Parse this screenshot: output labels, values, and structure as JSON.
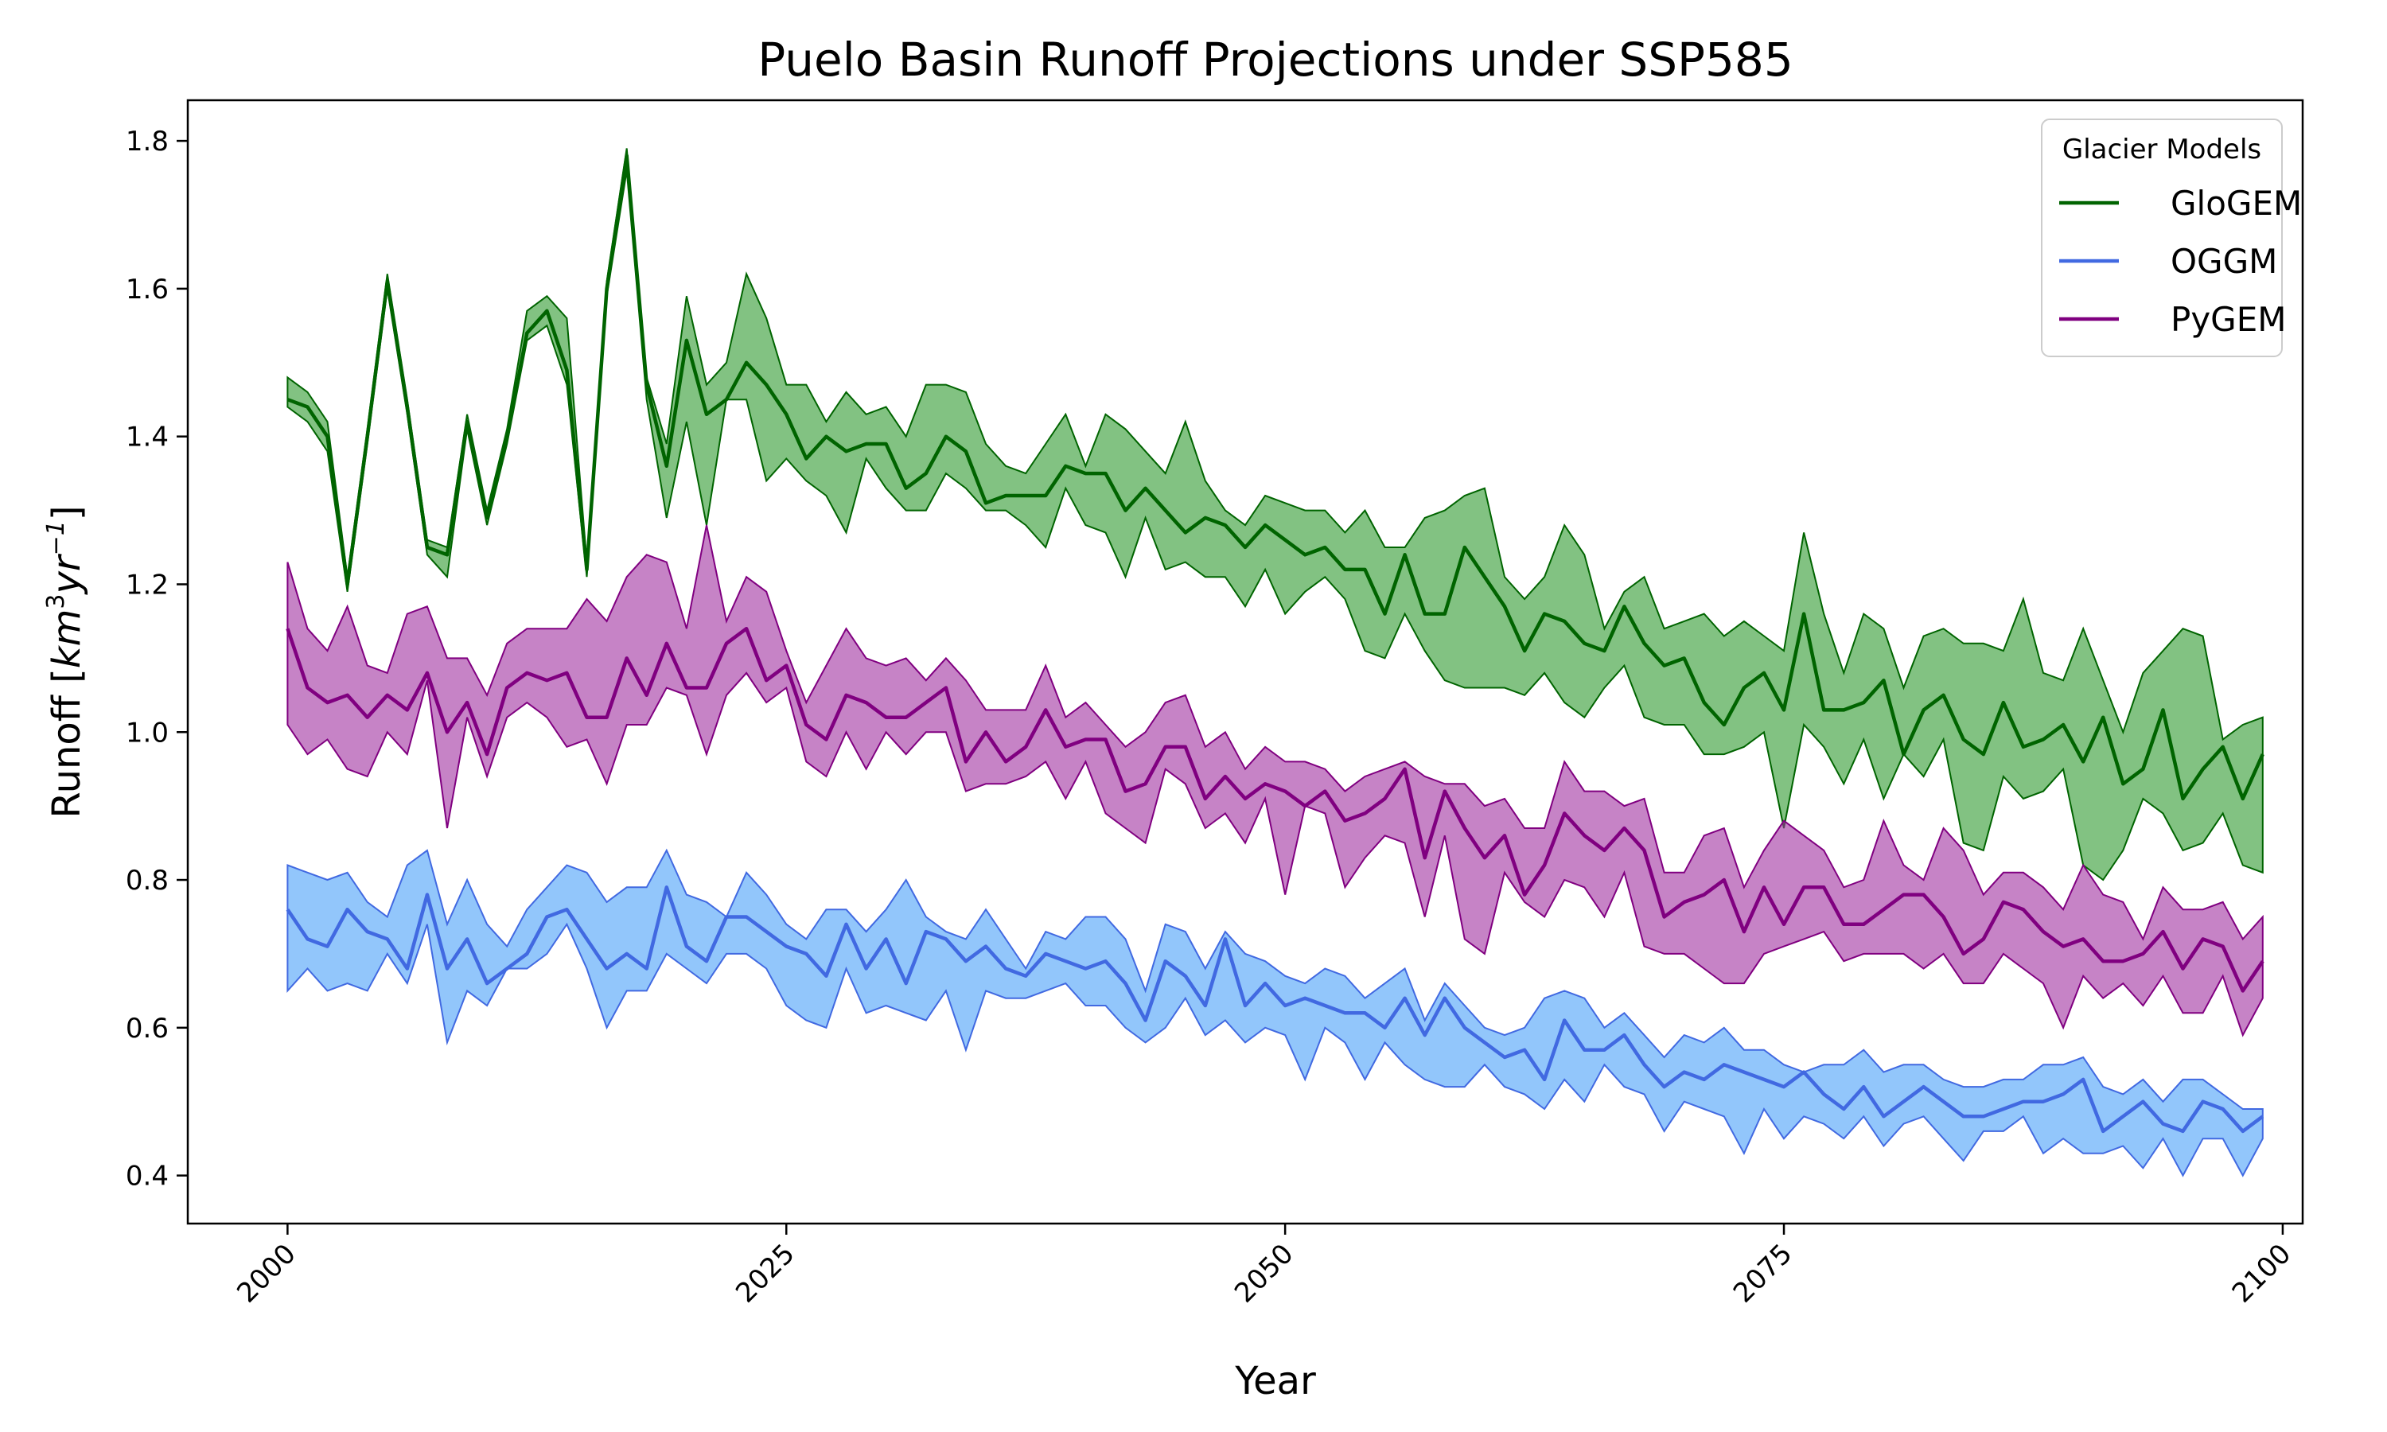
{
  "chart_data": {
    "type": "line",
    "title": "Puelo Basin Runoff Projections under SSP585",
    "xlabel": "Year",
    "ylabel_main": "Runoff [",
    "ylabel_unit_base": "km",
    "ylabel_unit_exp1": "3",
    "ylabel_unit_mid": "yr",
    "ylabel_unit_exp2": "−1",
    "ylabel_close": "]",
    "xlim": [
      1995,
      2101
    ],
    "ylim": [
      0.335,
      1.855
    ],
    "xticks": [
      2000,
      2025,
      2050,
      2075,
      2100
    ],
    "yticks": [
      0.4,
      0.6,
      0.8,
      1.0,
      1.2,
      1.4,
      1.6,
      1.8
    ],
    "ytick_labels": [
      "0.4",
      "0.6",
      "0.8",
      "1.0",
      "1.2",
      "1.4",
      "1.6",
      "1.8"
    ],
    "grid": false,
    "legend": {
      "title": "Glacier Models",
      "position": "top-right"
    },
    "x_start": 2000,
    "series": [
      {
        "name": "GloGEM",
        "color": "#006400",
        "fill": "#2e9a2e",
        "mean": [
          1.45,
          1.44,
          1.4,
          1.2,
          1.4,
          1.61,
          1.44,
          1.25,
          1.24,
          1.42,
          1.29,
          1.4,
          1.54,
          1.57,
          1.49,
          1.22,
          1.6,
          1.78,
          1.47,
          1.36,
          1.53,
          1.43,
          1.45,
          1.5,
          1.47,
          1.43,
          1.37,
          1.4,
          1.38,
          1.39,
          1.39,
          1.33,
          1.35,
          1.4,
          1.38,
          1.31,
          1.32,
          1.32,
          1.32,
          1.36,
          1.35,
          1.35,
          1.3,
          1.33,
          1.3,
          1.27,
          1.29,
          1.28,
          1.25,
          1.28,
          1.26,
          1.24,
          1.25,
          1.22,
          1.22,
          1.16,
          1.24,
          1.16,
          1.16,
          1.25,
          1.21,
          1.17,
          1.11,
          1.16,
          1.15,
          1.12,
          1.11,
          1.17,
          1.12,
          1.09,
          1.1,
          1.04,
          1.01,
          1.06,
          1.08,
          1.03,
          1.16,
          1.03,
          1.03,
          1.04,
          1.07,
          0.97,
          1.03,
          1.05,
          0.99,
          0.97,
          1.04,
          0.98,
          0.99,
          1.01,
          0.96,
          1.02,
          0.93,
          0.95,
          1.03,
          0.91,
          0.95,
          0.98,
          0.91,
          0.97
        ],
        "lower": [
          1.44,
          1.42,
          1.38,
          1.19,
          1.39,
          1.6,
          1.43,
          1.24,
          1.21,
          1.41,
          1.28,
          1.39,
          1.53,
          1.55,
          1.47,
          1.21,
          1.59,
          1.76,
          1.45,
          1.29,
          1.42,
          1.28,
          1.45,
          1.45,
          1.34,
          1.37,
          1.34,
          1.32,
          1.27,
          1.37,
          1.33,
          1.3,
          1.3,
          1.35,
          1.33,
          1.3,
          1.3,
          1.28,
          1.25,
          1.33,
          1.28,
          1.27,
          1.21,
          1.29,
          1.22,
          1.23,
          1.21,
          1.21,
          1.17,
          1.22,
          1.16,
          1.19,
          1.21,
          1.18,
          1.11,
          1.1,
          1.16,
          1.11,
          1.07,
          1.06,
          1.06,
          1.06,
          1.05,
          1.08,
          1.04,
          1.02,
          1.06,
          1.09,
          1.02,
          1.01,
          1.01,
          0.97,
          0.97,
          0.98,
          1.0,
          0.87,
          1.01,
          0.98,
          0.93,
          0.99,
          0.91,
          0.97,
          0.94,
          0.99,
          0.85,
          0.84,
          0.94,
          0.91,
          0.92,
          0.95,
          0.82,
          0.8,
          0.84,
          0.91,
          0.89,
          0.84,
          0.85,
          0.89,
          0.82,
          0.81
        ],
        "upper": [
          1.48,
          1.46,
          1.42,
          1.21,
          1.41,
          1.62,
          1.45,
          1.26,
          1.25,
          1.43,
          1.3,
          1.41,
          1.57,
          1.59,
          1.56,
          1.23,
          1.61,
          1.79,
          1.48,
          1.39,
          1.59,
          1.47,
          1.5,
          1.62,
          1.56,
          1.47,
          1.47,
          1.42,
          1.46,
          1.43,
          1.44,
          1.4,
          1.47,
          1.47,
          1.46,
          1.39,
          1.36,
          1.35,
          1.39,
          1.43,
          1.36,
          1.43,
          1.41,
          1.38,
          1.35,
          1.42,
          1.34,
          1.3,
          1.28,
          1.32,
          1.31,
          1.3,
          1.3,
          1.27,
          1.3,
          1.25,
          1.25,
          1.29,
          1.3,
          1.32,
          1.33,
          1.21,
          1.18,
          1.21,
          1.28,
          1.24,
          1.14,
          1.19,
          1.21,
          1.14,
          1.15,
          1.16,
          1.13,
          1.15,
          1.13,
          1.11,
          1.27,
          1.16,
          1.08,
          1.16,
          1.14,
          1.06,
          1.13,
          1.14,
          1.12,
          1.12,
          1.11,
          1.18,
          1.08,
          1.07,
          1.14,
          1.07,
          1.0,
          1.08,
          1.11,
          1.14,
          1.13,
          0.99,
          1.01,
          1.02
        ]
      },
      {
        "name": "OGGM",
        "color": "#4169e1",
        "fill": "#4aa0f8",
        "mean": [
          0.76,
          0.72,
          0.71,
          0.76,
          0.73,
          0.72,
          0.68,
          0.78,
          0.68,
          0.72,
          0.66,
          0.68,
          0.7,
          0.75,
          0.76,
          0.72,
          0.68,
          0.7,
          0.68,
          0.79,
          0.71,
          0.69,
          0.75,
          0.75,
          0.73,
          0.71,
          0.7,
          0.67,
          0.74,
          0.68,
          0.72,
          0.66,
          0.73,
          0.72,
          0.69,
          0.71,
          0.68,
          0.67,
          0.7,
          0.69,
          0.68,
          0.69,
          0.66,
          0.61,
          0.69,
          0.67,
          0.63,
          0.72,
          0.63,
          0.66,
          0.63,
          0.64,
          0.63,
          0.62,
          0.62,
          0.6,
          0.64,
          0.59,
          0.64,
          0.6,
          0.58,
          0.56,
          0.57,
          0.53,
          0.61,
          0.57,
          0.57,
          0.59,
          0.55,
          0.52,
          0.54,
          0.53,
          0.55,
          0.54,
          0.53,
          0.52,
          0.54,
          0.51,
          0.49,
          0.52,
          0.48,
          0.5,
          0.52,
          0.5,
          0.48,
          0.48,
          0.49,
          0.5,
          0.5,
          0.51,
          0.53,
          0.46,
          0.48,
          0.5,
          0.47,
          0.46,
          0.5,
          0.49,
          0.46,
          0.48
        ],
        "lower": [
          0.65,
          0.68,
          0.65,
          0.66,
          0.65,
          0.7,
          0.66,
          0.74,
          0.58,
          0.65,
          0.63,
          0.68,
          0.68,
          0.7,
          0.74,
          0.68,
          0.6,
          0.65,
          0.65,
          0.7,
          0.68,
          0.66,
          0.7,
          0.7,
          0.68,
          0.63,
          0.61,
          0.6,
          0.68,
          0.62,
          0.63,
          0.62,
          0.61,
          0.65,
          0.57,
          0.65,
          0.64,
          0.64,
          0.65,
          0.66,
          0.63,
          0.63,
          0.6,
          0.58,
          0.6,
          0.64,
          0.59,
          0.61,
          0.58,
          0.6,
          0.59,
          0.53,
          0.6,
          0.58,
          0.53,
          0.58,
          0.55,
          0.53,
          0.52,
          0.52,
          0.55,
          0.52,
          0.51,
          0.49,
          0.53,
          0.5,
          0.55,
          0.52,
          0.51,
          0.46,
          0.5,
          0.49,
          0.48,
          0.43,
          0.49,
          0.45,
          0.48,
          0.47,
          0.45,
          0.48,
          0.44,
          0.47,
          0.48,
          0.45,
          0.42,
          0.46,
          0.46,
          0.48,
          0.43,
          0.45,
          0.43,
          0.43,
          0.44,
          0.41,
          0.45,
          0.4,
          0.45,
          0.45,
          0.4,
          0.45
        ],
        "upper": [
          0.82,
          0.81,
          0.8,
          0.81,
          0.77,
          0.75,
          0.82,
          0.84,
          0.74,
          0.8,
          0.74,
          0.71,
          0.76,
          0.79,
          0.82,
          0.81,
          0.77,
          0.79,
          0.79,
          0.84,
          0.78,
          0.77,
          0.75,
          0.81,
          0.78,
          0.74,
          0.72,
          0.76,
          0.76,
          0.73,
          0.76,
          0.8,
          0.75,
          0.73,
          0.72,
          0.76,
          0.72,
          0.68,
          0.73,
          0.72,
          0.75,
          0.75,
          0.72,
          0.65,
          0.74,
          0.73,
          0.68,
          0.73,
          0.7,
          0.69,
          0.67,
          0.66,
          0.68,
          0.67,
          0.64,
          0.66,
          0.68,
          0.61,
          0.66,
          0.63,
          0.6,
          0.59,
          0.6,
          0.64,
          0.65,
          0.64,
          0.6,
          0.62,
          0.59,
          0.56,
          0.59,
          0.58,
          0.6,
          0.57,
          0.57,
          0.55,
          0.54,
          0.55,
          0.55,
          0.57,
          0.54,
          0.55,
          0.55,
          0.53,
          0.52,
          0.52,
          0.53,
          0.53,
          0.55,
          0.55,
          0.56,
          0.52,
          0.51,
          0.53,
          0.5,
          0.53,
          0.53,
          0.51,
          0.49,
          0.49
        ]
      },
      {
        "name": "PyGEM",
        "color": "#800080",
        "fill": "#a030a0",
        "mean": [
          1.14,
          1.06,
          1.04,
          1.05,
          1.02,
          1.05,
          1.03,
          1.08,
          1.0,
          1.04,
          0.97,
          1.06,
          1.08,
          1.07,
          1.08,
          1.02,
          1.02,
          1.1,
          1.05,
          1.12,
          1.06,
          1.06,
          1.12,
          1.14,
          1.07,
          1.09,
          1.01,
          0.99,
          1.05,
          1.04,
          1.02,
          1.02,
          1.04,
          1.06,
          0.96,
          1.0,
          0.96,
          0.98,
          1.03,
          0.98,
          0.99,
          0.99,
          0.92,
          0.93,
          0.98,
          0.98,
          0.91,
          0.94,
          0.91,
          0.93,
          0.92,
          0.9,
          0.92,
          0.88,
          0.89,
          0.91,
          0.95,
          0.83,
          0.92,
          0.87,
          0.83,
          0.86,
          0.78,
          0.82,
          0.89,
          0.86,
          0.84,
          0.87,
          0.84,
          0.75,
          0.77,
          0.78,
          0.8,
          0.73,
          0.79,
          0.74,
          0.79,
          0.79,
          0.74,
          0.74,
          0.76,
          0.78,
          0.78,
          0.75,
          0.7,
          0.72,
          0.77,
          0.76,
          0.73,
          0.71,
          0.72,
          0.69,
          0.69,
          0.7,
          0.73,
          0.68,
          0.72,
          0.71,
          0.65,
          0.69
        ],
        "lower": [
          1.01,
          0.97,
          0.99,
          0.95,
          0.94,
          1.0,
          0.97,
          1.07,
          0.87,
          1.02,
          0.94,
          1.02,
          1.04,
          1.02,
          0.98,
          0.99,
          0.93,
          1.01,
          1.01,
          1.06,
          1.05,
          0.97,
          1.05,
          1.08,
          1.04,
          1.06,
          0.96,
          0.94,
          1.0,
          0.95,
          1.0,
          0.97,
          1.0,
          1.0,
          0.92,
          0.93,
          0.93,
          0.94,
          0.96,
          0.91,
          0.96,
          0.89,
          0.87,
          0.85,
          0.95,
          0.93,
          0.87,
          0.89,
          0.85,
          0.91,
          0.78,
          0.9,
          0.89,
          0.79,
          0.83,
          0.86,
          0.85,
          0.75,
          0.86,
          0.72,
          0.7,
          0.81,
          0.77,
          0.75,
          0.8,
          0.79,
          0.75,
          0.81,
          0.71,
          0.7,
          0.7,
          0.68,
          0.66,
          0.66,
          0.7,
          0.71,
          0.72,
          0.73,
          0.69,
          0.7,
          0.7,
          0.7,
          0.68,
          0.7,
          0.66,
          0.66,
          0.7,
          0.68,
          0.66,
          0.6,
          0.67,
          0.64,
          0.66,
          0.63,
          0.67,
          0.62,
          0.62,
          0.67,
          0.59,
          0.64
        ],
        "upper": [
          1.23,
          1.14,
          1.11,
          1.17,
          1.09,
          1.08,
          1.16,
          1.17,
          1.1,
          1.1,
          1.05,
          1.12,
          1.14,
          1.14,
          1.14,
          1.18,
          1.15,
          1.21,
          1.24,
          1.23,
          1.14,
          1.28,
          1.15,
          1.21,
          1.19,
          1.11,
          1.04,
          1.09,
          1.14,
          1.1,
          1.09,
          1.1,
          1.07,
          1.1,
          1.07,
          1.03,
          1.03,
          1.03,
          1.09,
          1.02,
          1.04,
          1.01,
          0.98,
          1.0,
          1.04,
          1.05,
          0.98,
          1.0,
          0.95,
          0.98,
          0.96,
          0.96,
          0.95,
          0.92,
          0.94,
          0.95,
          0.96,
          0.94,
          0.93,
          0.93,
          0.9,
          0.91,
          0.87,
          0.87,
          0.96,
          0.92,
          0.92,
          0.9,
          0.91,
          0.81,
          0.81,
          0.86,
          0.87,
          0.79,
          0.84,
          0.88,
          0.86,
          0.84,
          0.79,
          0.8,
          0.88,
          0.82,
          0.8,
          0.87,
          0.84,
          0.78,
          0.81,
          0.81,
          0.79,
          0.76,
          0.82,
          0.78,
          0.77,
          0.72,
          0.79,
          0.76,
          0.76,
          0.77,
          0.72,
          0.75
        ]
      }
    ]
  }
}
